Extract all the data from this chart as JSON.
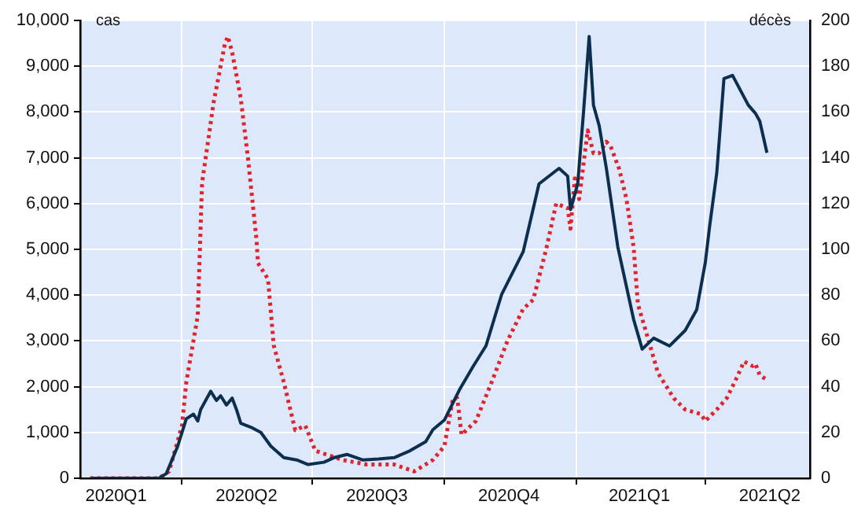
{
  "chart_data": {
    "type": "line",
    "ylabel": "cas",
    "y2label": "décès",
    "xlim": [
      "2020-01-21",
      "2021-06-13"
    ],
    "xticks": [
      {
        "value": "2020-02-15",
        "label": "2020Q1"
      },
      {
        "value": "2020-04-01",
        "label": null
      },
      {
        "value": "2020-05-16",
        "label": "2020Q2"
      },
      {
        "value": "2020-07-01",
        "label": null
      },
      {
        "value": "2020-08-15",
        "label": "2020Q3"
      },
      {
        "value": "2020-10-01",
        "label": null
      },
      {
        "value": "2020-11-15",
        "label": "2020Q4"
      },
      {
        "value": "2021-01-01",
        "label": null
      },
      {
        "value": "2021-02-14",
        "label": "2021Q1"
      },
      {
        "value": "2021-04-01",
        "label": null
      },
      {
        "value": "2021-05-16",
        "label": "2021Q2"
      }
    ],
    "ylim": [
      0,
      10000
    ],
    "yticks": [
      0,
      {
        "value": 1000,
        "label": "1,000"
      },
      {
        "value": 2000,
        "label": "2,000"
      },
      {
        "value": 3000,
        "label": "3,000"
      },
      {
        "value": 4000,
        "label": "4,000"
      },
      {
        "value": 5000,
        "label": "5,000"
      },
      {
        "value": 6000,
        "label": "6,000"
      },
      {
        "value": 7000,
        "label": "7,000"
      },
      {
        "value": 8000,
        "label": "8,000"
      },
      {
        "value": 9000,
        "label": "9,000"
      },
      {
        "value": 10000,
        "label": "10,000"
      }
    ],
    "y2lim": [
      0,
      200
    ],
    "y2ticks": [
      0,
      20,
      40,
      60,
      80,
      100,
      120,
      140,
      160,
      180,
      200
    ],
    "grid": true,
    "marker": "none",
    "series": [
      {
        "color": "#0d2f4f",
        "line_style": "solid",
        "x": [
          "2020-01-28",
          "2020-02-01",
          "2020-03-16",
          "2020-03-21",
          "2020-03-29",
          "2020-04-04",
          "2020-04-09",
          "2020-04-12",
          "2020-04-14",
          "2020-04-21",
          "2020-04-25",
          "2020-04-28",
          "2020-05-02",
          "2020-05-06",
          "2020-05-09",
          "2020-05-12",
          "2020-05-20",
          "2020-05-26",
          "2020-06-02",
          "2020-06-11",
          "2020-06-20",
          "2020-06-28",
          "2020-07-09",
          "2020-07-16",
          "2020-07-25",
          "2020-08-05",
          "2020-08-16",
          "2020-08-27",
          "2020-09-07",
          "2020-09-18",
          "2020-09-23",
          "2020-10-01",
          "2020-10-12",
          "2020-10-21",
          "2020-10-30",
          "2020-11-10",
          "2020-11-25",
          "2020-12-06",
          "2020-12-20",
          "2020-12-26",
          "2020-12-28",
          "2021-01-02",
          "2021-01-06",
          "2021-01-10",
          "2021-01-13",
          "2021-01-17",
          "2021-01-22",
          "2021-01-30",
          "2021-02-10",
          "2021-02-16",
          "2021-02-24",
          "2021-03-07",
          "2021-03-18",
          "2021-03-26",
          "2021-04-01",
          "2021-04-04",
          "2021-04-09",
          "2021-04-14",
          "2021-04-20",
          "2021-05-01",
          "2021-05-06",
          "2021-05-09",
          "2021-05-14"
        ],
        "values": [
          0,
          0,
          0,
          100,
          700,
          1300,
          1400,
          1250,
          1500,
          1900,
          1700,
          1800,
          1600,
          1750,
          1500,
          1200,
          1100,
          1000,
          700,
          450,
          400,
          300,
          350,
          450,
          520,
          400,
          420,
          450,
          600,
          800,
          1060,
          1270,
          1960,
          2440,
          2890,
          4020,
          4950,
          6430,
          6770,
          6600,
          5870,
          6430,
          7970,
          9650,
          8150,
          7700,
          6770,
          5050,
          3470,
          2820,
          3060,
          2890,
          3230,
          3680,
          4710,
          5500,
          6670,
          8730,
          8800,
          8150,
          7970,
          7800,
          7110
        ]
      },
      {
        "color": "#e0242e",
        "line_style": "dotted",
        "axis": "y2",
        "x": [
          "2020-01-28",
          "2020-03-16",
          "2020-03-23",
          "2020-04-01",
          "2020-04-04",
          "2020-04-12",
          "2020-04-15",
          "2020-04-23",
          "2020-05-01",
          "2020-05-03",
          "2020-05-06",
          "2020-05-12",
          "2020-05-17",
          "2020-05-23",
          "2020-05-24",
          "2020-05-31",
          "2020-06-04",
          "2020-06-11",
          "2020-06-19",
          "2020-06-26",
          "2020-07-03",
          "2020-07-22",
          "2020-08-08",
          "2020-08-27",
          "2020-09-10",
          "2020-09-23",
          "2020-10-01",
          "2020-10-07",
          "2020-10-10",
          "2020-10-13",
          "2020-10-23",
          "2020-11-03",
          "2020-11-14",
          "2020-11-25",
          "2020-12-02",
          "2020-12-11",
          "2020-12-18",
          "2020-12-26",
          "2020-12-28",
          "2020-12-31",
          "2021-01-03",
          "2021-01-09",
          "2021-01-13",
          "2021-01-17",
          "2021-01-22",
          "2021-01-25",
          "2021-01-31",
          "2021-02-05",
          "2021-02-10",
          "2021-02-13",
          "2021-02-21",
          "2021-02-27",
          "2021-03-10",
          "2021-03-18",
          "2021-03-29",
          "2021-04-01",
          "2021-04-09",
          "2021-04-16",
          "2021-04-23",
          "2021-04-28",
          "2021-05-04",
          "2021-05-06",
          "2021-05-09",
          "2021-05-14"
        ],
        "values": [
          0,
          0,
          3,
          23,
          42,
          71,
          129,
          164,
          190,
          193,
          186,
          166,
          140,
          104,
          94,
          87,
          58,
          42,
          21,
          23,
          12,
          8,
          6,
          6,
          3,
          8,
          14,
          35,
          35,
          19,
          25,
          42,
          60,
          74,
          78,
          100,
          120,
          118,
          109,
          131,
          122,
          152,
          142,
          142,
          147,
          145,
          135,
          122,
          101,
          76,
          59,
          46,
          35,
          30,
          28,
          25,
          30,
          35,
          44,
          51,
          49,
          50,
          45,
          43
        ]
      }
    ]
  }
}
